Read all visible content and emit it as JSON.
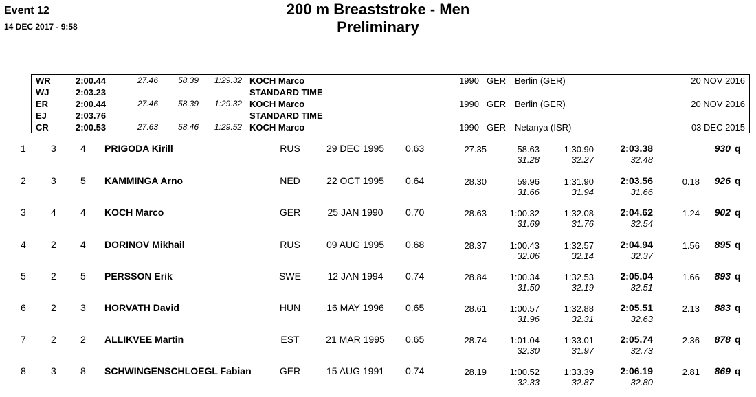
{
  "header": {
    "event": "Event 12",
    "datetime": "14 DEC 2017 -  9:58",
    "title": "200 m Breaststroke - Men",
    "subtitle": "Preliminary"
  },
  "records": [
    {
      "code": "WR",
      "time": "2:00.44",
      "s1": "27.46",
      "s2": "58.39",
      "s3": "1:29.32",
      "name": "KOCH Marco",
      "year": "1990",
      "nat": "GER",
      "place": "Berlin (GER)",
      "date": "20 NOV 2016"
    },
    {
      "code": "WJ",
      "time": "2:03.23",
      "s1": "",
      "s2": "",
      "s3": "",
      "name": "STANDARD TIME",
      "year": "",
      "nat": "",
      "place": "",
      "date": ""
    },
    {
      "code": "ER",
      "time": "2:00.44",
      "s1": "27.46",
      "s2": "58.39",
      "s3": "1:29.32",
      "name": "KOCH Marco",
      "year": "1990",
      "nat": "GER",
      "place": "Berlin (GER)",
      "date": "20 NOV 2016"
    },
    {
      "code": "EJ",
      "time": "2:03.76",
      "s1": "",
      "s2": "",
      "s3": "",
      "name": "STANDARD TIME",
      "year": "",
      "nat": "",
      "place": "",
      "date": ""
    },
    {
      "code": "CR",
      "time": "2:00.53",
      "s1": "27.63",
      "s2": "58.46",
      "s3": "1:29.52",
      "name": "KOCH Marco",
      "year": "1990",
      "nat": "GER",
      "place": "Netanya (ISR)",
      "date": "03 DEC 2015"
    }
  ],
  "results": [
    {
      "rank": "1",
      "heat": "3",
      "lane": "4",
      "name": "PRIGODA Kirill",
      "nat": "RUS",
      "dob": "29 DEC 1995",
      "rt": "0.63",
      "s50": "27.35",
      "s100": "58.63",
      "s150": "1:30.90",
      "final": "2:03.38",
      "behind": "",
      "points": "930",
      "q": "q",
      "sp100": "31.28",
      "sp150": "32.27",
      "sp200": "32.48"
    },
    {
      "rank": "2",
      "heat": "3",
      "lane": "5",
      "name": "KAMMINGA Arno",
      "nat": "NED",
      "dob": "22 OCT 1995",
      "rt": "0.64",
      "s50": "28.30",
      "s100": "59.96",
      "s150": "1:31.90",
      "final": "2:03.56",
      "behind": "0.18",
      "points": "926",
      "q": "q",
      "sp100": "31.66",
      "sp150": "31.94",
      "sp200": "31.66"
    },
    {
      "rank": "3",
      "heat": "4",
      "lane": "4",
      "name": "KOCH Marco",
      "nat": "GER",
      "dob": "25 JAN 1990",
      "rt": "0.70",
      "s50": "28.63",
      "s100": "1:00.32",
      "s150": "1:32.08",
      "final": "2:04.62",
      "behind": "1.24",
      "points": "902",
      "q": "q",
      "sp100": "31.69",
      "sp150": "31.76",
      "sp200": "32.54"
    },
    {
      "rank": "4",
      "heat": "2",
      "lane": "4",
      "name": "DORINOV Mikhail",
      "nat": "RUS",
      "dob": "09 AUG 1995",
      "rt": "0.68",
      "s50": "28.37",
      "s100": "1:00.43",
      "s150": "1:32.57",
      "final": "2:04.94",
      "behind": "1.56",
      "points": "895",
      "q": "q",
      "sp100": "32.06",
      "sp150": "32.14",
      "sp200": "32.37"
    },
    {
      "rank": "5",
      "heat": "2",
      "lane": "5",
      "name": "PERSSON Erik",
      "nat": "SWE",
      "dob": "12 JAN 1994",
      "rt": "0.74",
      "s50": "28.84",
      "s100": "1:00.34",
      "s150": "1:32.53",
      "final": "2:05.04",
      "behind": "1.66",
      "points": "893",
      "q": "q",
      "sp100": "31.50",
      "sp150": "32.19",
      "sp200": "32.51"
    },
    {
      "rank": "6",
      "heat": "2",
      "lane": "3",
      "name": "HORVATH David",
      "nat": "HUN",
      "dob": "16 MAY 1996",
      "rt": "0.65",
      "s50": "28.61",
      "s100": "1:00.57",
      "s150": "1:32.88",
      "final": "2:05.51",
      "behind": "2.13",
      "points": "883",
      "q": "q",
      "sp100": "31.96",
      "sp150": "32.31",
      "sp200": "32.63"
    },
    {
      "rank": "7",
      "heat": "2",
      "lane": "2",
      "name": "ALLIKVEE Martin",
      "nat": "EST",
      "dob": "21 MAR 1995",
      "rt": "0.65",
      "s50": "28.74",
      "s100": "1:01.04",
      "s150": "1:33.01",
      "final": "2:05.74",
      "behind": "2.36",
      "points": "878",
      "q": "q",
      "sp100": "32.30",
      "sp150": "31.97",
      "sp200": "32.73"
    },
    {
      "rank": "8",
      "heat": "3",
      "lane": "8",
      "name": "SCHWINGENSCHLOEGL Fabian",
      "nat": "GER",
      "dob": "15 AUG 1991",
      "rt": "0.74",
      "s50": "28.19",
      "s100": "1:00.52",
      "s150": "1:33.39",
      "final": "2:06.19",
      "behind": "2.81",
      "points": "869",
      "q": "q",
      "sp100": "32.33",
      "sp150": "32.87",
      "sp200": "32.80"
    }
  ]
}
